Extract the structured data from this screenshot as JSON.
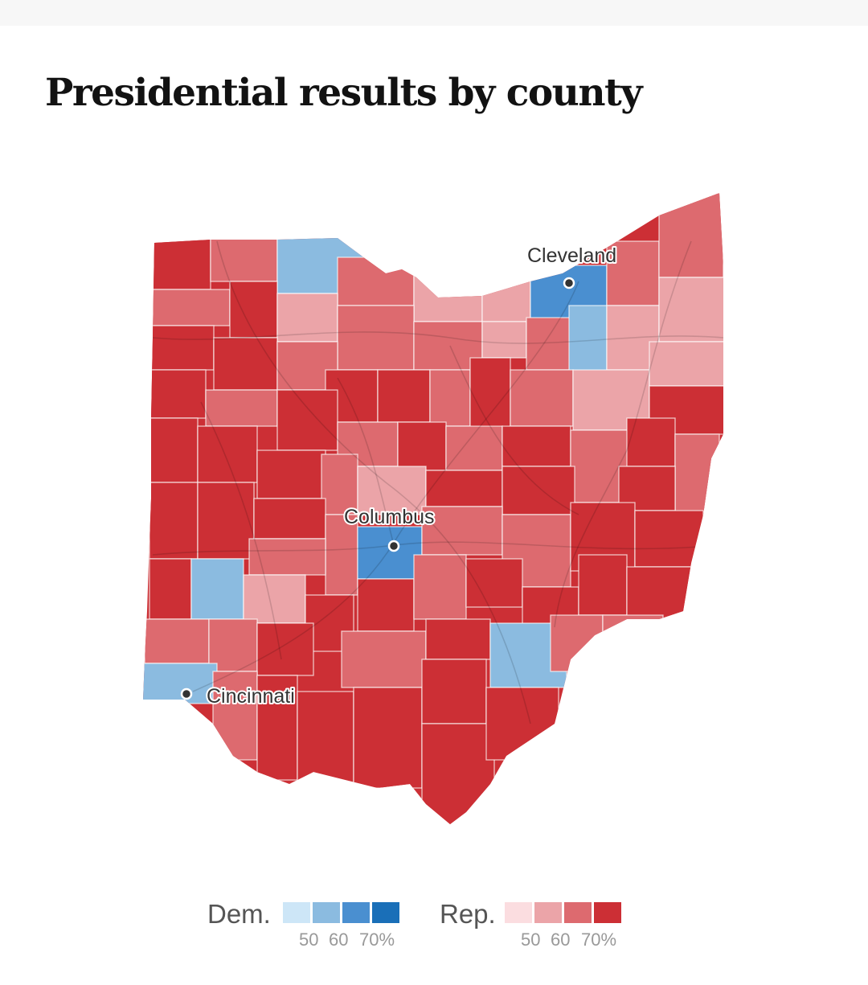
{
  "title": "Presidential results by county",
  "cities": [
    {
      "name": "Cleveland"
    },
    {
      "name": "Columbus"
    },
    {
      "name": "Cincinnati"
    }
  ],
  "colors": {
    "dem": [
      "#cde6f7",
      "#8bbbe0",
      "#4a8fd0",
      "#1a6fb8"
    ],
    "rep": [
      "#fbdde0",
      "#eba4a8",
      "#dd6a6f",
      "#cc2f35"
    ]
  },
  "legend": {
    "dem_label": "Dem.",
    "rep_label": "Rep.",
    "dem_ticks": [
      "50",
      "60",
      "70%"
    ],
    "rep_ticks": [
      "50",
      "60",
      "70%"
    ]
  }
}
